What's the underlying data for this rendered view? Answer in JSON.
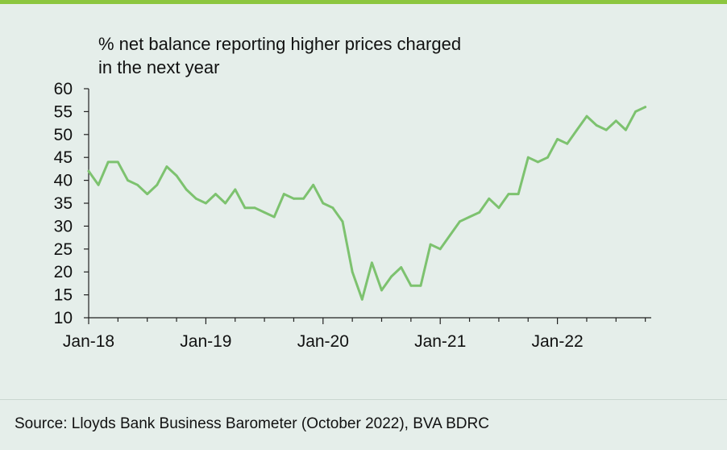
{
  "title_lines": [
    "% net balance reporting higher prices charged",
    "in the next year"
  ],
  "source": "Source: Lloyds Bank Business Barometer (October 2022), BVA BDRC",
  "colors": {
    "line": "#7dc26f",
    "accent": "#8cc63f",
    "background": "#e5eeea",
    "axis": "#222222"
  },
  "chart_data": {
    "type": "line",
    "title": "% net balance reporting higher prices charged in the next year",
    "xlabel": "",
    "ylabel": "",
    "ylim": [
      10,
      60
    ],
    "yticks": [
      10,
      15,
      20,
      25,
      30,
      35,
      40,
      45,
      50,
      55,
      60
    ],
    "xtick_labels": [
      "Jan-18",
      "Jan-19",
      "Jan-20",
      "Jan-21",
      "Jan-22"
    ],
    "grid": false,
    "x_start": "Jan-18",
    "x_end": "Oct-22",
    "series": [
      {
        "values": [
          42,
          39,
          44,
          44,
          40,
          39,
          37,
          39,
          43,
          41,
          38,
          36,
          35,
          37,
          35,
          38,
          34,
          34,
          33,
          32,
          37,
          36,
          36,
          39,
          35,
          34,
          31,
          20,
          14,
          22,
          16,
          19,
          21,
          17,
          17,
          26,
          25,
          28,
          31,
          32,
          33,
          36,
          34,
          37,
          37,
          45,
          44,
          45,
          49,
          48,
          51,
          54,
          52,
          51,
          53,
          51,
          55,
          56
        ]
      }
    ]
  }
}
